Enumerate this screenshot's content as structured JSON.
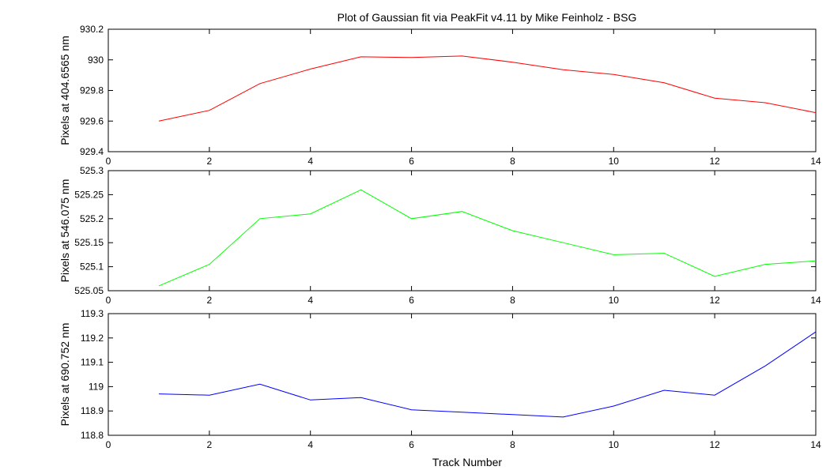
{
  "chart_data": {
    "type": "line",
    "title": "Plot of Gaussian fit via PeakFit v4.11 by Mike Feinholz - BSG",
    "xlabel": "Track Number",
    "subplots": [
      {
        "ylabel": "Pixels at 404.6565 nm",
        "color": "#ff0000",
        "xlim": [
          0,
          14
        ],
        "ylim": [
          929.4,
          930.2
        ],
        "xticks": [
          0,
          2,
          4,
          6,
          8,
          10,
          12,
          14
        ],
        "yticks": [
          929.4,
          929.6,
          929.8,
          930,
          930.2
        ],
        "ytick_labels": [
          "929.4",
          "929.6",
          "929.8",
          "930",
          "930.2"
        ],
        "x": [
          1,
          2,
          3,
          4,
          5,
          6,
          7,
          8,
          9,
          10,
          11,
          12,
          13,
          14
        ],
        "y": [
          929.6,
          929.67,
          929.845,
          929.94,
          930.02,
          930.015,
          930.025,
          929.985,
          929.935,
          929.905,
          929.85,
          929.75,
          929.72,
          929.655
        ]
      },
      {
        "ylabel": "Pixels at 546.075 nm",
        "color": "#00ff00",
        "xlim": [
          0,
          14
        ],
        "ylim": [
          525.05,
          525.3
        ],
        "xticks": [
          0,
          2,
          4,
          6,
          8,
          10,
          12,
          14
        ],
        "yticks": [
          525.05,
          525.1,
          525.15,
          525.2,
          525.25,
          525.3
        ],
        "ytick_labels": [
          "525.05",
          "525.1",
          "525.15",
          "525.2",
          "525.25",
          "525.3"
        ],
        "x": [
          1,
          2,
          3,
          4,
          5,
          6,
          7,
          8,
          9,
          10,
          11,
          12,
          13,
          14
        ],
        "y": [
          525.06,
          525.105,
          525.2,
          525.21,
          525.26,
          525.2,
          525.215,
          525.175,
          525.15,
          525.125,
          525.128,
          525.08,
          525.105,
          525.112
        ]
      },
      {
        "ylabel": "Pixels at 690.752 nm",
        "color": "#0000ff",
        "xlim": [
          0,
          14
        ],
        "ylim": [
          118.8,
          119.3
        ],
        "xticks": [
          0,
          2,
          4,
          6,
          8,
          10,
          12,
          14
        ],
        "yticks": [
          118.8,
          118.9,
          119,
          119.1,
          119.2,
          119.3
        ],
        "ytick_labels": [
          "118.8",
          "118.9",
          "119",
          "119.1",
          "119.2",
          "119.3"
        ],
        "x": [
          1,
          2,
          3,
          4,
          5,
          6,
          7,
          8,
          9,
          10,
          11,
          12,
          13,
          14
        ],
        "y": [
          118.97,
          118.965,
          119.01,
          118.945,
          118.955,
          118.905,
          118.895,
          118.885,
          118.875,
          118.92,
          118.985,
          118.965,
          119.085,
          119.225
        ]
      }
    ]
  }
}
